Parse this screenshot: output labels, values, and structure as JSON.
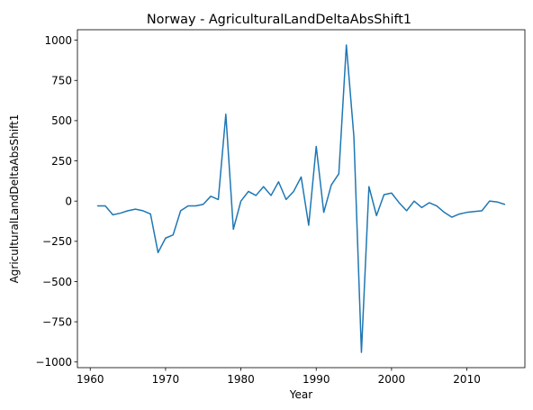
{
  "chart_data": {
    "type": "line",
    "title": "Norway - AgriculturalLandDeltaAbsShift1",
    "xlabel": "Year",
    "ylabel": "AgriculturalLandDeltaAbsShift1",
    "xlim": [
      1958.3,
      2017.7
    ],
    "ylim": [
      -1035,
      1065
    ],
    "x_ticks": [
      1960,
      1970,
      1980,
      1990,
      2000,
      2010
    ],
    "y_ticks": [
      -1000,
      -750,
      -500,
      -250,
      0,
      250,
      500,
      750,
      1000
    ],
    "grid": false,
    "line_color": "#1f77b4",
    "series": [
      {
        "x": [
          1961,
          1962,
          1963,
          1964,
          1965,
          1966,
          1967,
          1968,
          1969,
          1970,
          1971,
          1972,
          1973,
          1974,
          1975,
          1976,
          1977,
          1978,
          1979,
          1980,
          1981,
          1982,
          1983,
          1984,
          1985,
          1986,
          1987,
          1988,
          1989,
          1990,
          1991,
          1992,
          1993,
          1994,
          1995,
          1996,
          1997,
          1998,
          1999,
          2000,
          2001,
          2002,
          2003,
          2004,
          2005,
          2006,
          2007,
          2008,
          2009,
          2010,
          2011,
          2012,
          2013,
          2014,
          2015
        ],
        "values": [
          -30,
          -30,
          -85,
          -75,
          -60,
          -50,
          -60,
          -80,
          -320,
          -230,
          -210,
          -60,
          -30,
          -30,
          -20,
          30,
          10,
          540,
          -175,
          0,
          60,
          35,
          90,
          35,
          120,
          10,
          60,
          150,
          -150,
          340,
          -70,
          100,
          170,
          970,
          400,
          -940,
          90,
          -90,
          40,
          50,
          -10,
          -60,
          0,
          -40,
          -10,
          -30,
          -70,
          -100,
          -80,
          -70,
          -65,
          -60,
          0,
          -5,
          -20
        ]
      }
    ]
  }
}
